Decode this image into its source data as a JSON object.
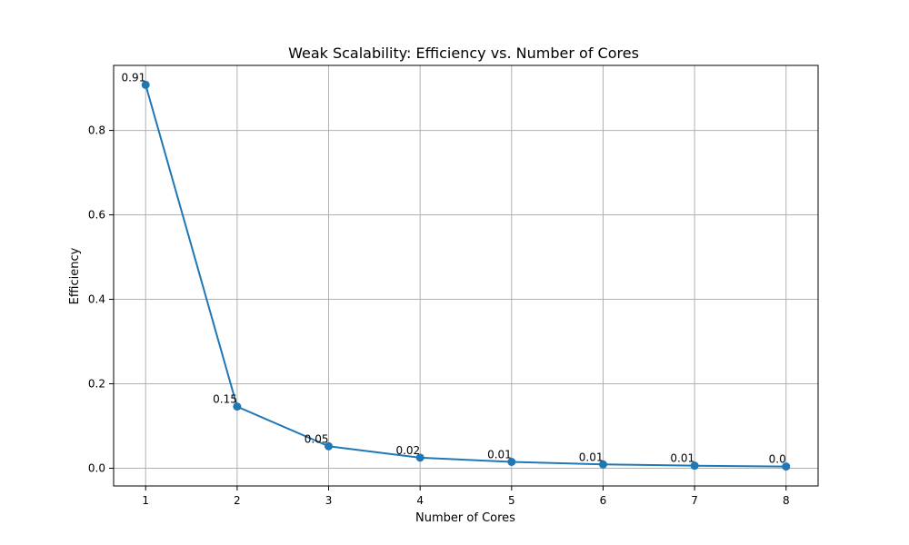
{
  "chart_data": {
    "type": "line",
    "title": "Weak Scalability: Efficiency vs. Number of Cores",
    "xlabel": "Number of Cores",
    "ylabel": "Efficiency",
    "x": [
      1,
      2,
      3,
      4,
      5,
      6,
      7,
      8
    ],
    "x_ticks": [
      "1",
      "2",
      "3",
      "4",
      "5",
      "6",
      "7",
      "8"
    ],
    "y_ticks": [
      "0.0",
      "0.2",
      "0.4",
      "0.6",
      "0.8"
    ],
    "y_tick_values": [
      0.0,
      0.2,
      0.4,
      0.6,
      0.8
    ],
    "series": [
      {
        "values": [
          0.908,
          0.146,
          0.052,
          0.025,
          0.015,
          0.009,
          0.006,
          0.004
        ],
        "labels": [
          "0.91",
          "0.15",
          "0.05",
          "0.02",
          "0.01",
          "0.01",
          "0.01",
          "0.0"
        ],
        "color": "#1f77b4"
      }
    ],
    "xlim": [
      0.65,
      8.35
    ],
    "ylim": [
      -0.042,
      0.954
    ],
    "grid": true,
    "markers": "circle"
  }
}
